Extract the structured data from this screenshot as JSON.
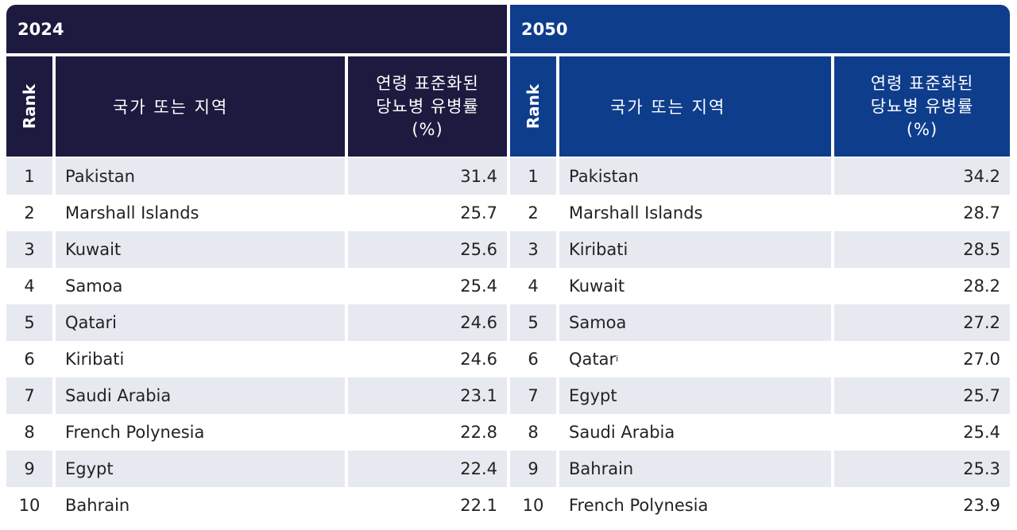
{
  "left": {
    "year": "2024",
    "header_rank": "Rank",
    "header_country": "국가 또는 지역",
    "header_value_lines": [
      "연령 표준화된",
      "당뇨병 유병률",
      "(%)"
    ],
    "rows": [
      {
        "rank": "1",
        "country": "Pakistan",
        "value": "31.4"
      },
      {
        "rank": "2",
        "country": "Marshall Islands",
        "value": "25.7"
      },
      {
        "rank": "3",
        "country": "Kuwait",
        "value": "25.6"
      },
      {
        "rank": "4",
        "country": "Samoa",
        "value": "25.4"
      },
      {
        "rank": "5",
        "country": "Qatari",
        "value": "24.6"
      },
      {
        "rank": "6",
        "country": "Kiribati",
        "value": "24.6"
      },
      {
        "rank": "7",
        "country": "Saudi Arabia",
        "value": "23.1"
      },
      {
        "rank": "8",
        "country": "French Polynesia",
        "value": "22.8"
      },
      {
        "rank": "9",
        "country": "Egypt",
        "value": "22.4"
      },
      {
        "rank": "10",
        "country": "Bahrain",
        "value": "22.1"
      }
    ]
  },
  "right": {
    "year": "2050",
    "header_rank": "Rank",
    "header_country": "국가 또는 지역",
    "header_value_lines": [
      "연령 표준화된",
      "당뇨병 유병률",
      "(%)"
    ],
    "rows": [
      {
        "rank": "1",
        "country": "Pakistan",
        "value": "34.2"
      },
      {
        "rank": "2",
        "country": "Marshall Islands",
        "value": "28.7"
      },
      {
        "rank": "3",
        "country": "Kiribati",
        "value": "28.5"
      },
      {
        "rank": "4",
        "country": "Kuwait",
        "value": "28.2"
      },
      {
        "rank": "5",
        "country": "Samoa",
        "value": "27.2"
      },
      {
        "rank": "6",
        "country": "Qatar",
        "value": "27.0",
        "sup": "i"
      },
      {
        "rank": "7",
        "country": "Egypt",
        "value": "25.7"
      },
      {
        "rank": "8",
        "country": "Saudi Arabia",
        "value": "25.4"
      },
      {
        "rank": "9",
        "country": "Bahrain",
        "value": "25.3"
      },
      {
        "rank": "10",
        "country": "French Polynesia",
        "value": "23.9"
      }
    ]
  },
  "colors": {
    "left_header": "#1c1a3e",
    "right_header": "#0e3d8c",
    "row_shade": "#e6e9f0"
  }
}
